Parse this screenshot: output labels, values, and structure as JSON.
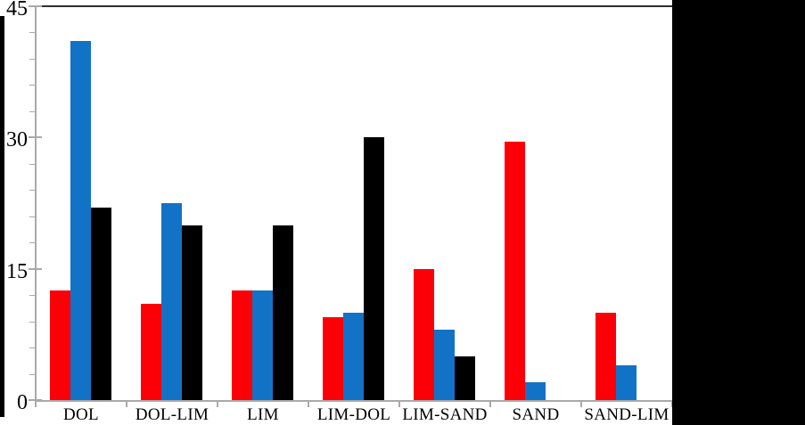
{
  "frame": {
    "background": "#FFFFFF",
    "side_band_color": "#000000",
    "axis_color": "#A9A9A9",
    "top_border_color": "#2F2F2F",
    "text_color": "#000000"
  },
  "chart_data": {
    "type": "bar",
    "title": "",
    "xlabel": "",
    "ylabel": "",
    "categories": [
      "DOL",
      "DOL-LIM",
      "LIM",
      "LIM-DOL",
      "LIM-SAND",
      "SAND",
      "SAND-LIM"
    ],
    "series": [
      {
        "name": "red",
        "color": "#FB0006",
        "values": [
          12.5,
          11,
          12.5,
          9.5,
          15,
          29.5,
          10
        ]
      },
      {
        "name": "blue",
        "color": "#1272C6",
        "values": [
          41,
          22.5,
          12.5,
          10,
          8,
          2,
          4
        ]
      },
      {
        "name": "black",
        "color": "#000000",
        "values": [
          22,
          20,
          20,
          30,
          5,
          0,
          0
        ]
      }
    ],
    "ylim": [
      0,
      45
    ],
    "yticks": [
      0,
      15,
      30,
      45
    ],
    "yticklabels": [
      "0",
      "15",
      "30",
      "45"
    ],
    "minor_tick_step": 3,
    "grid": false,
    "legend_position": "none"
  }
}
